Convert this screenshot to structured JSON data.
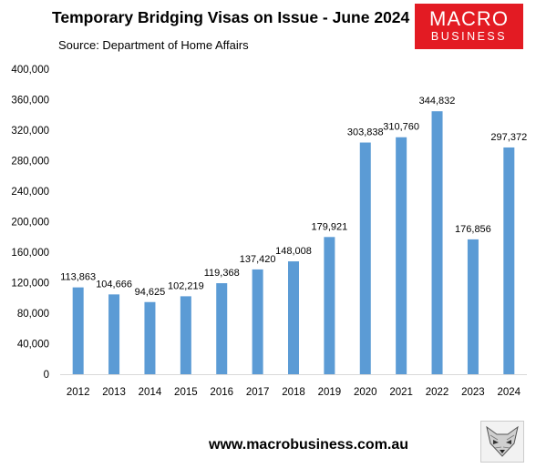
{
  "header": {
    "title": "Temporary Bridging Visas on Issue - June 2024",
    "subtitle": "Source: Department of Home Affairs"
  },
  "logo": {
    "line1": "MACRO",
    "line2": "BUSINESS"
  },
  "footer": {
    "url": "www.macrobusiness.com.au"
  },
  "colors": {
    "bar": "#5b9bd5",
    "logo_bg": "#e31b23",
    "axis": "#d9d9d9"
  },
  "chart_data": {
    "type": "bar",
    "title": "Temporary Bridging Visas on Issue - June 2024",
    "subtitle": "Source: Department of Home Affairs",
    "categories": [
      "2012",
      "2013",
      "2014",
      "2015",
      "2016",
      "2017",
      "2018",
      "2019",
      "2020",
      "2021",
      "2022",
      "2023",
      "2024"
    ],
    "values": [
      113863,
      104666,
      94625,
      102219,
      119368,
      137420,
      148008,
      179921,
      303838,
      310760,
      344832,
      176856,
      297372
    ],
    "value_labels": [
      "113,863",
      "104,666",
      "94,625",
      "102,219",
      "119,368",
      "137,420",
      "148,008",
      "179,921",
      "303,838",
      "310,760",
      "344,832",
      "176,856",
      "297,372"
    ],
    "y_ticks": [
      "0",
      "40,000",
      "80,000",
      "120,000",
      "160,000",
      "200,000",
      "240,000",
      "280,000",
      "320,000",
      "360,000",
      "400,000"
    ],
    "ylim": [
      0,
      400000
    ],
    "xlabel": "",
    "ylabel": "",
    "grid": false,
    "legend": "none"
  }
}
